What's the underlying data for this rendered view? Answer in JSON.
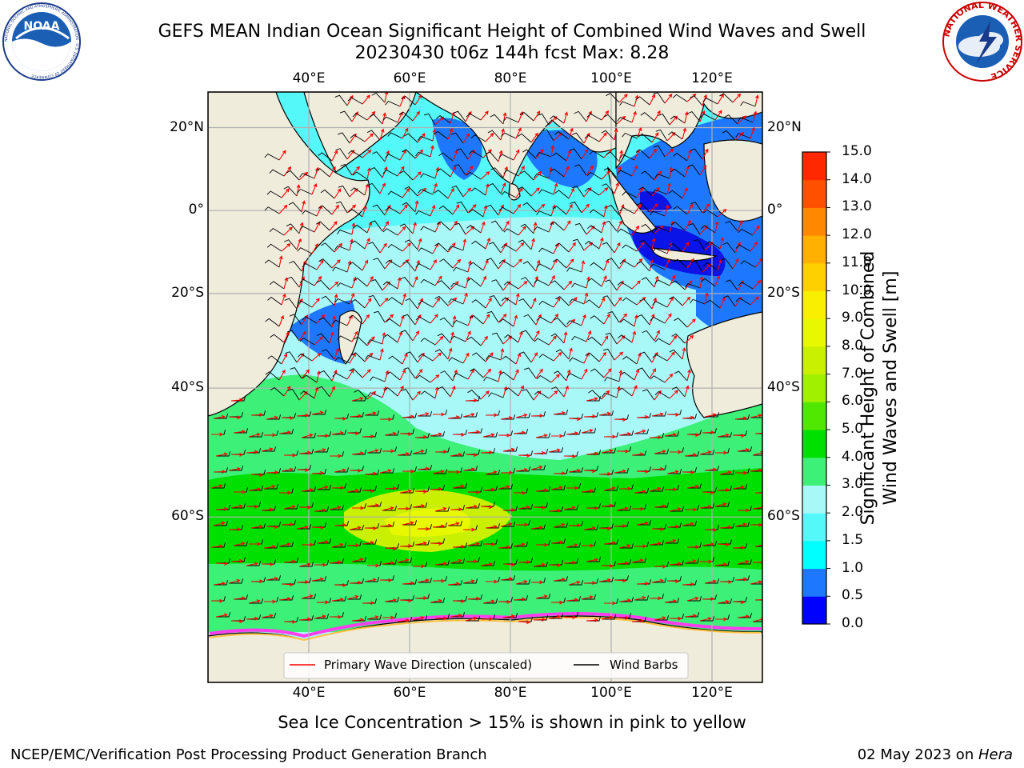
{
  "title": {
    "line1": "GEFS MEAN Indian Ocean Significant Height of Combined Wind Waves and Swell",
    "line2": "20230430 t06z 144h fcst   Max: 8.28"
  },
  "logos": {
    "noaa_text": "NOAA",
    "noaa_ring": "NATIONAL OCEANIC AND ATMOSPHERIC ADMINISTRATION · U.S. DEPARTMENT OF COMMERCE",
    "nws_ring": "NATIONAL WEATHER SERVICE"
  },
  "map": {
    "lon_ticks_top": [
      "40°E",
      "60°E",
      "80°E",
      "100°E",
      "120°E"
    ],
    "lon_ticks_bottom": [
      "40°E",
      "60°E",
      "80°E",
      "100°E",
      "120°E"
    ],
    "lat_ticks_left": [
      "20°N",
      "0°",
      "20°S",
      "40°S",
      "60°S"
    ],
    "lat_ticks_right": [
      "20°N",
      "0°",
      "20°S",
      "40°S",
      "60°S"
    ],
    "lon_values": [
      40,
      60,
      80,
      100,
      120
    ],
    "lat_values": [
      20,
      0,
      -20,
      -40,
      -60
    ],
    "extent": {
      "lon_min": 20,
      "lon_max": 130,
      "lat_min": -75,
      "lat_max": 28
    },
    "colors": {
      "land": "#efecdc",
      "ice_white": "#ffffff",
      "grid": "#b0b0b0"
    },
    "regions": [
      {
        "name": "southern-ocean-green-band",
        "color": "#3cf078"
      },
      {
        "name": "southern-ocean-bright-green",
        "color": "#00e000"
      },
      {
        "name": "max-yellow-green",
        "color": "#c8f000"
      },
      {
        "name": "central-pale-cyan",
        "color": "#a8f8f8"
      },
      {
        "name": "arabian-sea-cyan",
        "color": "#55f8f8"
      },
      {
        "name": "coastal-blue",
        "color": "#1e78ff"
      },
      {
        "name": "indonesia-deep-blue",
        "color": "#0a14e6"
      }
    ]
  },
  "legend": {
    "primary_wave": "Primary Wave Direction (unscaled)",
    "wind_barbs": "Wind Barbs",
    "primary_wave_color": "#ff0000",
    "wind_barb_color": "#000000"
  },
  "colorbar": {
    "label_line1": "Significant Height of Combined",
    "label_line2": "Wind Waves and Swell [m]",
    "ticks": [
      "0.0",
      "0.5",
      "1.0",
      "1.5",
      "2.0",
      "3.0",
      "4.0",
      "5.0",
      "6.0",
      "7.0",
      "8.0",
      "9.0",
      "10.0",
      "11.0",
      "12.0",
      "13.0",
      "14.0",
      "15.0"
    ],
    "colors": [
      "#0000ff",
      "#1e78ff",
      "#00ffff",
      "#55f8f8",
      "#a8f8f8",
      "#3cf078",
      "#00e000",
      "#50e800",
      "#a0f000",
      "#c8f000",
      "#e8f800",
      "#f8f000",
      "#ffd000",
      "#ffb000",
      "#ff8800",
      "#ff5000",
      "#ff2800"
    ]
  },
  "caption": "Sea Ice Concentration > 15% is shown in pink to yellow",
  "footer": {
    "left": "NCEP/EMC/Verification Post Processing Product Generation Branch",
    "right_date": "02 May 2023 on ",
    "right_host": "Hera"
  }
}
